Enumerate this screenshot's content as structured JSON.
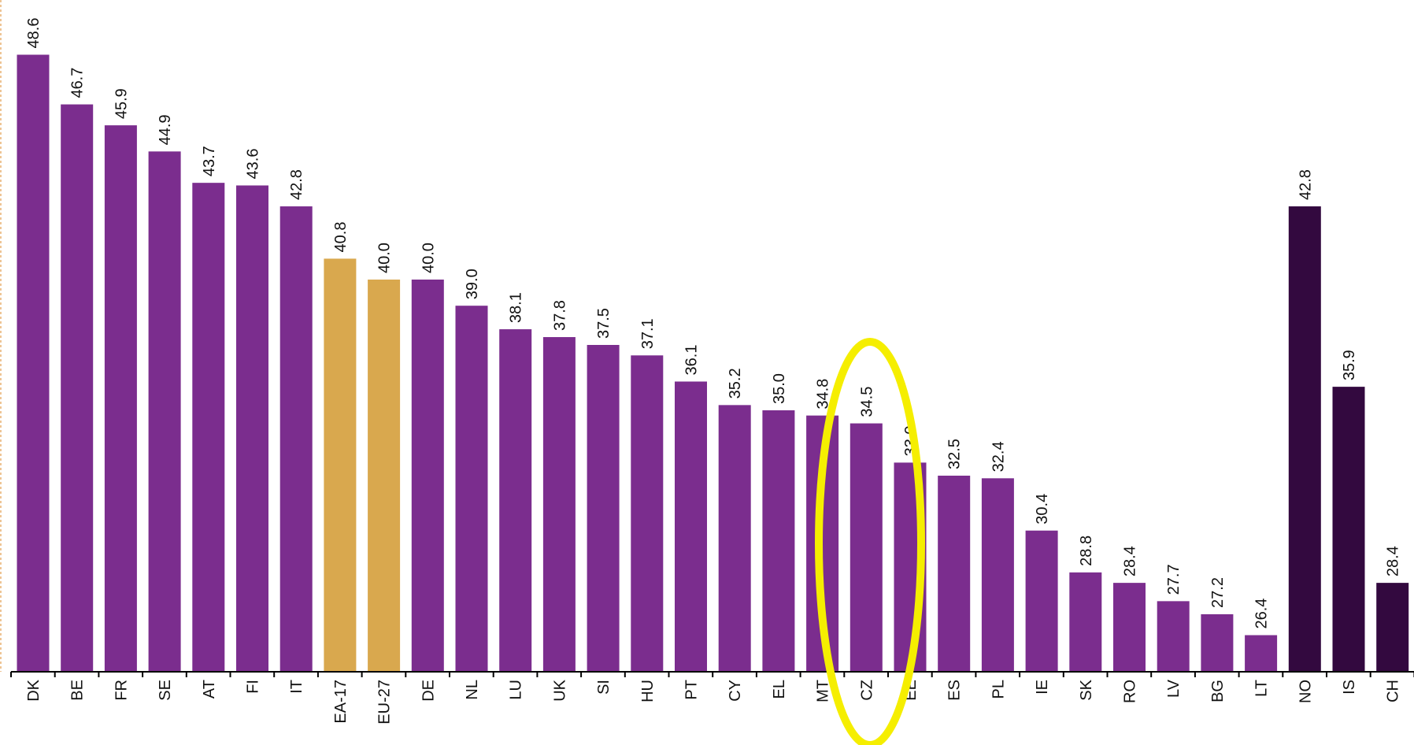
{
  "chart_data": {
    "type": "bar",
    "categories": [
      "DK",
      "BE",
      "FR",
      "SE",
      "AT",
      "FI",
      "IT",
      "EA-17",
      "EU-27",
      "DE",
      "NL",
      "LU",
      "UK",
      "SI",
      "HU",
      "PT",
      "CY",
      "EL",
      "MT",
      "CZ",
      "EE",
      "ES",
      "PL",
      "IE",
      "SK",
      "RO",
      "LV",
      "BG",
      "LT",
      "NO",
      "IS",
      "CH"
    ],
    "values": [
      48.6,
      46.7,
      45.9,
      44.9,
      43.7,
      43.6,
      42.8,
      40.8,
      40.0,
      40.0,
      39.0,
      38.1,
      37.8,
      37.5,
      37.1,
      36.1,
      35.2,
      35.0,
      34.8,
      34.5,
      33.0,
      32.5,
      32.4,
      30.4,
      28.8,
      28.4,
      27.7,
      27.2,
      26.4,
      42.8,
      35.9,
      28.4
    ],
    "value_labels": [
      "48.6",
      "46.7",
      "45.9",
      "44.9",
      "43.7",
      "43.6",
      "42.8",
      "40.8",
      "40.0",
      "40.0",
      "39.0",
      "38.1",
      "37.8",
      "37.5",
      "37.1",
      "36.1",
      "35.2",
      "35.0",
      "34.8",
      "34.5",
      "33.0",
      "32.5",
      "32.4",
      "30.4",
      "28.8",
      "28.4",
      "27.7",
      "27.2",
      "26.4",
      "42.8",
      "35.9",
      "28.4"
    ],
    "colors": [
      "#7b2d8e",
      "#7b2d8e",
      "#7b2d8e",
      "#7b2d8e",
      "#7b2d8e",
      "#7b2d8e",
      "#7b2d8e",
      "#d9a84e",
      "#d9a84e",
      "#7b2d8e",
      "#7b2d8e",
      "#7b2d8e",
      "#7b2d8e",
      "#7b2d8e",
      "#7b2d8e",
      "#7b2d8e",
      "#7b2d8e",
      "#7b2d8e",
      "#7b2d8e",
      "#7b2d8e",
      "#7b2d8e",
      "#7b2d8e",
      "#7b2d8e",
      "#7b2d8e",
      "#7b2d8e",
      "#7b2d8e",
      "#7b2d8e",
      "#7b2d8e",
      "#7b2d8e",
      "#33093f",
      "#33093f",
      "#33093f"
    ],
    "ylim": [
      25,
      50
    ]
  }
}
